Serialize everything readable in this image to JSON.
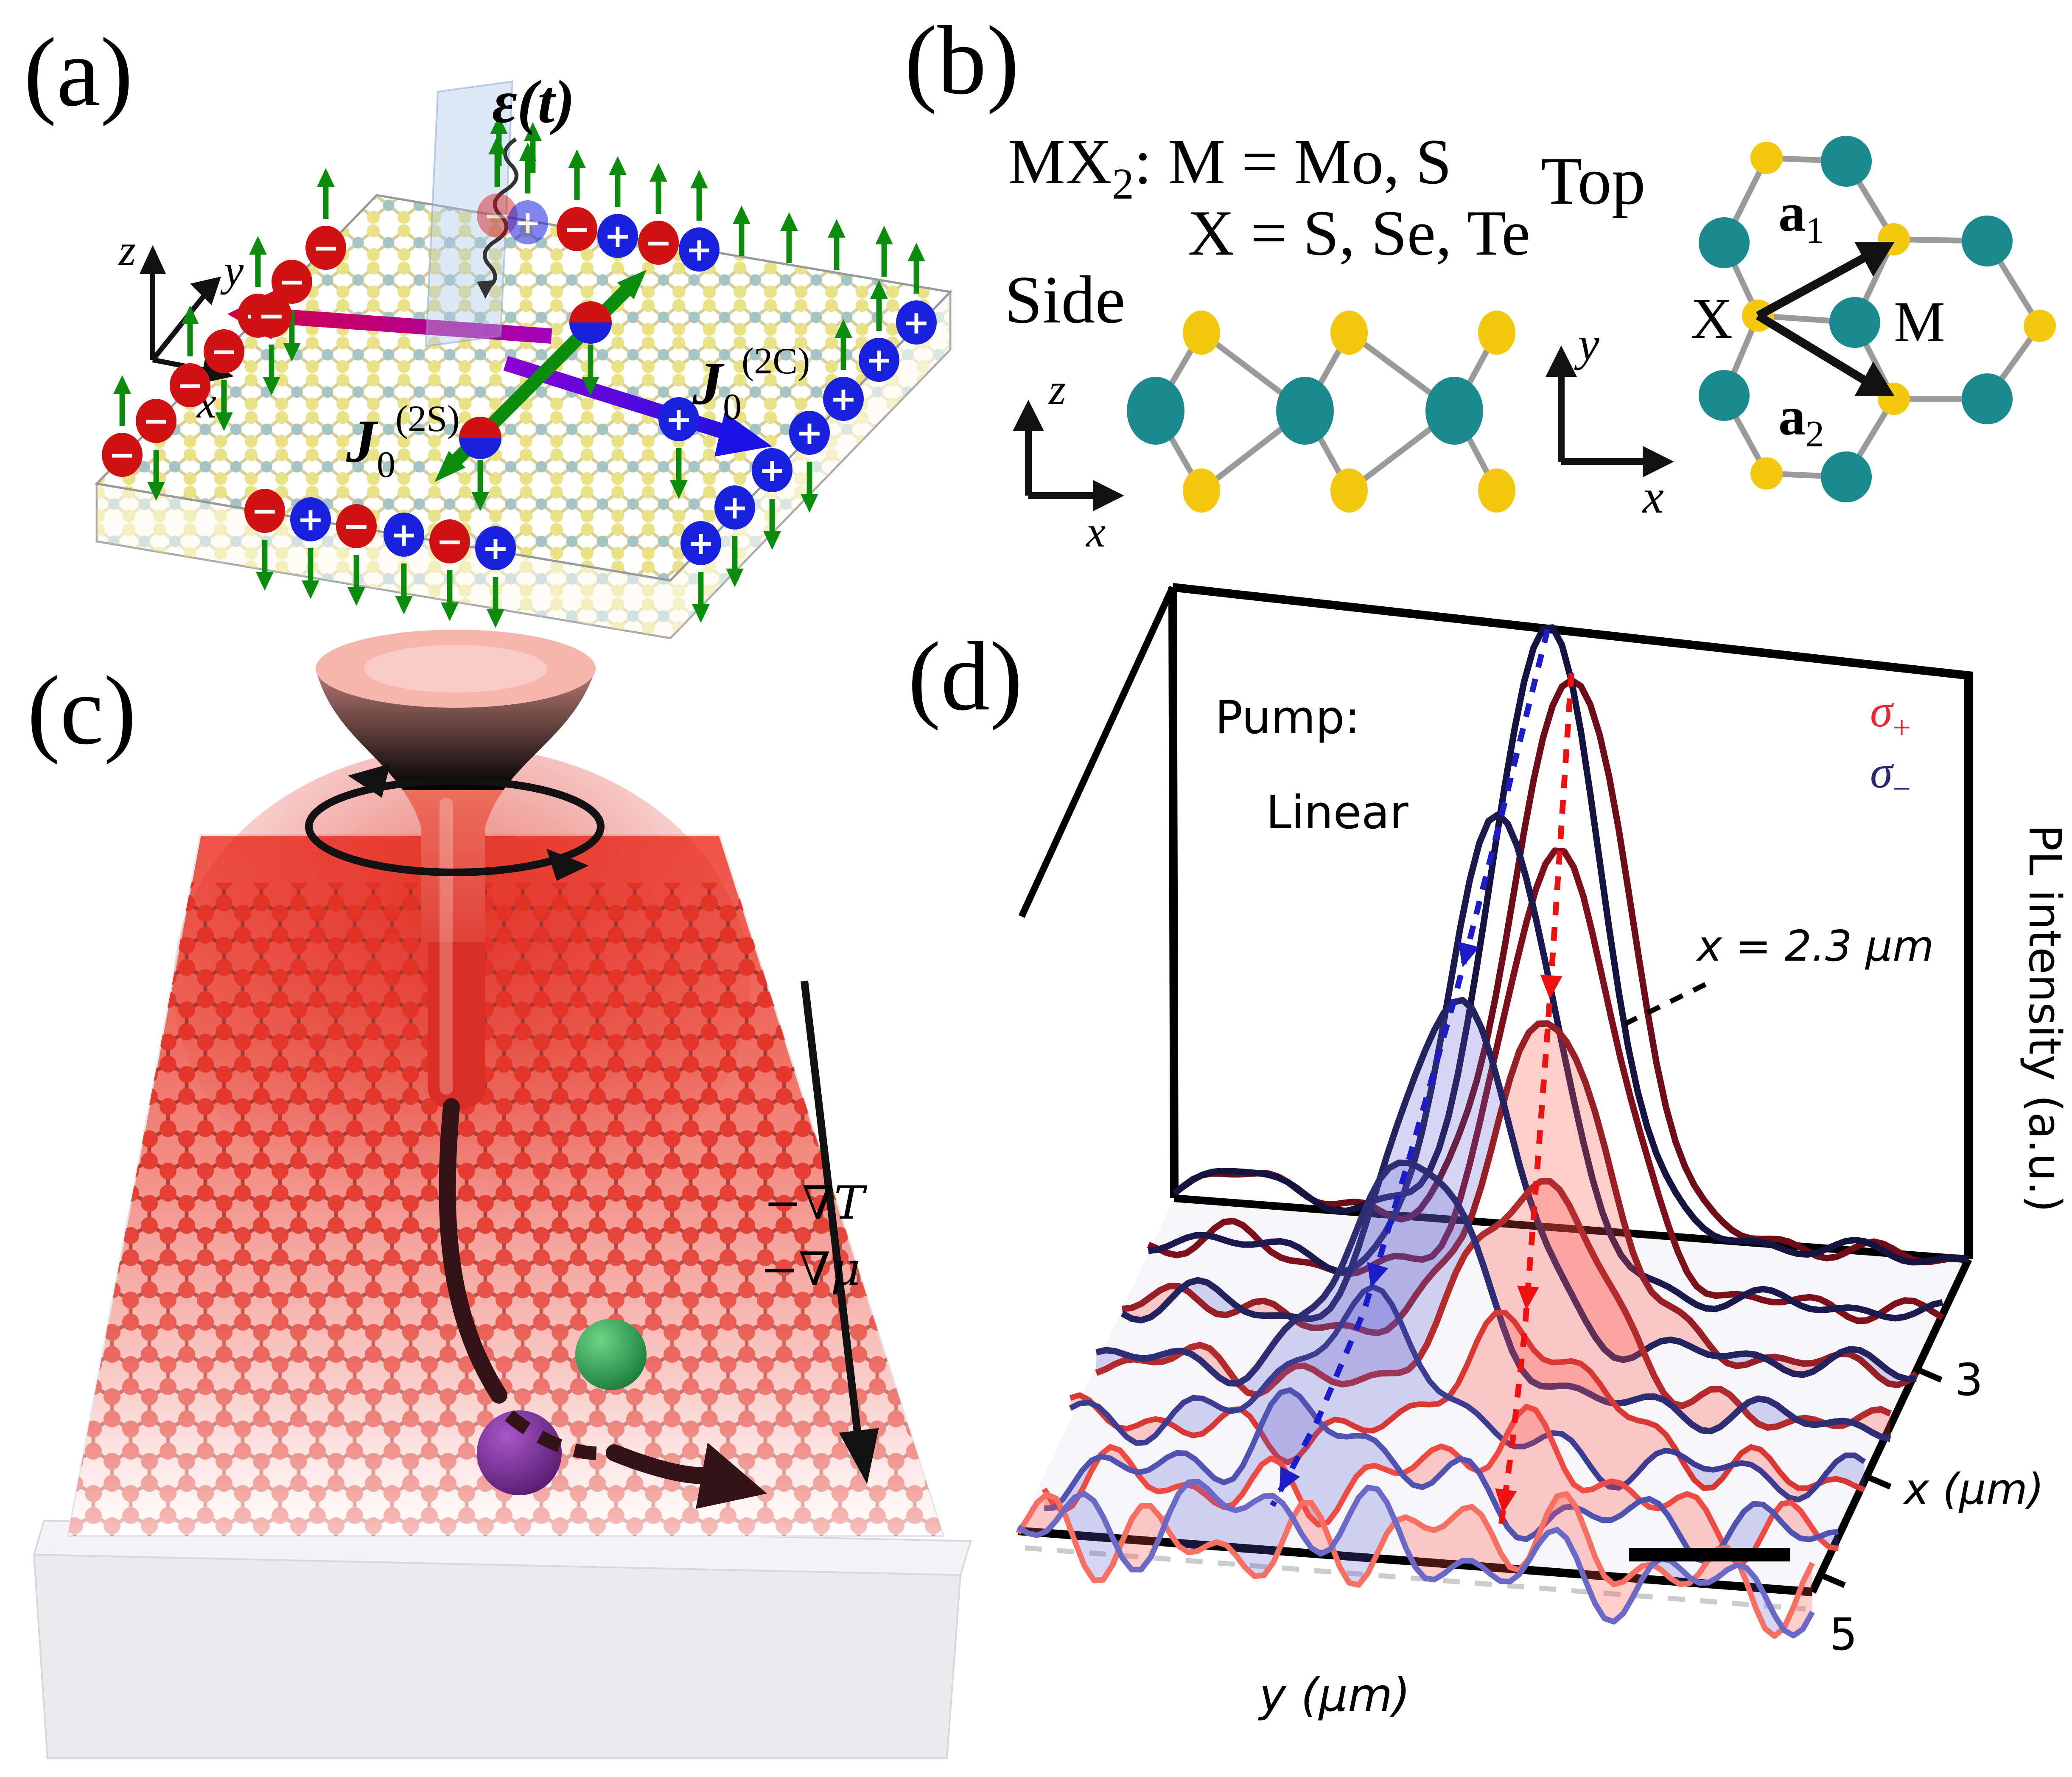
{
  "figure": {
    "panel_a": {
      "label": "(a)",
      "efield_label": "ε(t)",
      "j2c": {
        "base": "J",
        "sub": "0",
        "sup": "(2C)"
      },
      "j2s": {
        "base": "J",
        "sub": "0",
        "sup": "(2S)"
      },
      "axis_z": "z",
      "axis_y": "y",
      "axis_x": "x"
    },
    "panel_b": {
      "label": "(b)",
      "formula": {
        "base": "MX",
        "sub": "2",
        "rest": ": M = Mo, S",
        "line2": "X = S, Se, Te"
      },
      "side_label": "Side",
      "top_label": "Top",
      "atom_x": "X",
      "atom_m": "M",
      "a1": {
        "base": "a",
        "sub": "1"
      },
      "a2": {
        "base": "a",
        "sub": "2"
      },
      "axis_z": "z",
      "axis_x_side": "x",
      "axis_y": "y",
      "axis_x_top": "x"
    },
    "panel_c": {
      "label": "(c)",
      "grad_t": "−∇T",
      "grad_mu": "−∇μ"
    },
    "panel_d": {
      "label": "(d)",
      "pump_label": "Pump:",
      "pump_mode": "Linear",
      "sigma_plus": {
        "base": "σ",
        "sub": "+"
      },
      "sigma_minus": {
        "base": "σ",
        "sub": "−"
      },
      "annotation_x": "x = 2.3 μm",
      "z_axis_label": "PL intensity (a.u.)",
      "x_axis_label": "x (μm)",
      "y_axis_label": "y (μm)",
      "tick_3": "3",
      "tick_5": "5"
    }
  },
  "icons": {
    "negative_charge_glyph": "−",
    "positive_charge_glyph": "+"
  },
  "colors": {
    "sigma_plus": "#e8282d",
    "sigma_minus": "#28286e",
    "spin_arrow": "#0c8c0c",
    "negative_charge": "#cf1212",
    "positive_charge": "#1822dd",
    "teal_atom": "#1b8a8f",
    "yellow_atom": "#f2c811",
    "laser_red": "#e5473a",
    "dark_arrow": "#331318"
  },
  "chart_data": {
    "type": "line",
    "projection": "3d-waterfall",
    "title": "",
    "zlabel": "PL intensity (a.u.)",
    "xlabel": "x (μm)",
    "ylabel": "y (μm)",
    "x_ticks": [
      3,
      5
    ],
    "pump": "Linear",
    "legend": [
      {
        "label": "σ+",
        "color": "#e8282d"
      },
      {
        "label": "σ−",
        "color": "#28286e"
      }
    ],
    "annotation": {
      "text": "x = 2.3 μm",
      "slice_x_um": 2.3
    },
    "slices": [
      {
        "x_um": 2.3,
        "amp_rel": 1.0,
        "sm_center": 0.47,
        "sp_center": 0.5,
        "width": 0.068,
        "noise_rel": 0.018
      },
      {
        "x_um": 2.75,
        "amp_rel": 0.78,
        "sm_center": 0.445,
        "sp_center": 0.518,
        "width": 0.066,
        "noise_rel": 0.022
      },
      {
        "x_um": 3.2,
        "amp_rel": 0.57,
        "sm_center": 0.42,
        "sp_center": 0.536,
        "width": 0.07,
        "noise_rel": 0.028
      },
      {
        "x_um": 3.65,
        "amp_rel": 0.39,
        "sm_center": 0.395,
        "sp_center": 0.554,
        "width": 0.078,
        "noise_rel": 0.034
      },
      {
        "x_um": 4.1,
        "amp_rel": 0.22,
        "sm_center": 0.37,
        "sp_center": 0.572,
        "width": 0.088,
        "noise_rel": 0.045
      },
      {
        "x_um": 4.55,
        "amp_rel": 0.13,
        "sm_center": 0.345,
        "sp_center": 0.59,
        "width": 0.1,
        "noise_rel": 0.06
      },
      {
        "x_um": 5.0,
        "amp_rel": 0.075,
        "sm_center": 0.32,
        "sp_center": 0.608,
        "width": 0.115,
        "noise_rel": 0.08
      }
    ],
    "sigma_minus_colors": [
      "#141440",
      "#1a1a4e",
      "#23235e",
      "#2e2e74",
      "#3c3c92",
      "#5252b2",
      "#6a6ac6"
    ],
    "sigma_plus_colors": [
      "#6e0d18",
      "#7e101c",
      "#962026",
      "#b52a2c",
      "#d83734",
      "#ef4b42",
      "#f76f62"
    ],
    "fill_minus": "rgba(90,90,210,0.25)",
    "fill_plus": "rgba(255,80,70,0.28)",
    "fill_from_slice": 2
  }
}
